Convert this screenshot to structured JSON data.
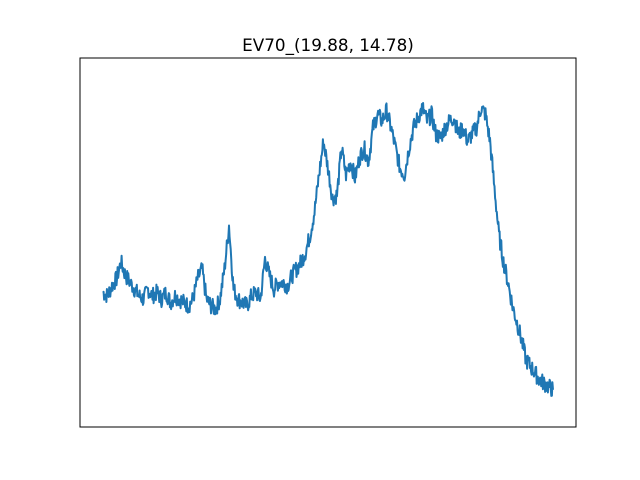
{
  "chart_data": {
    "type": "line",
    "title": "EV70_(19.88, 14.78)",
    "xlabel": "",
    "ylabel": "",
    "ticks_shown": false,
    "grid": false,
    "legend": "none",
    "xlim": [
      0,
      100
    ],
    "ylim": [
      0,
      100
    ],
    "series": [
      {
        "color": "#1f77b4",
        "x": [
          0,
          1,
          2,
          3,
          4,
          5,
          6,
          7,
          8,
          9,
          10,
          11,
          12,
          13,
          14,
          15,
          16,
          17,
          18,
          19,
          20,
          21,
          22,
          23,
          24,
          25,
          26,
          27,
          28,
          29,
          30,
          31,
          32,
          33,
          34,
          35,
          36,
          37,
          38,
          39,
          40,
          41,
          42,
          43,
          44,
          45,
          46,
          47,
          48,
          49,
          50,
          51,
          52,
          53,
          54,
          55,
          56,
          57,
          58,
          59,
          60,
          61,
          62,
          63,
          64,
          65,
          66,
          67,
          68,
          69,
          70,
          71,
          72,
          73,
          74,
          75,
          76,
          77,
          78,
          79,
          80,
          81,
          82,
          83,
          84,
          85,
          86,
          87,
          88,
          89,
          90,
          91,
          92,
          93,
          94,
          95,
          96,
          97,
          98,
          99,
          100
        ],
        "y": [
          35,
          34,
          37,
          39,
          44,
          40,
          38,
          36,
          34,
          33,
          36,
          34,
          35,
          33,
          35,
          32,
          34,
          33,
          32,
          31,
          33,
          39,
          42,
          33,
          31,
          30,
          33,
          42,
          55,
          36,
          33,
          32,
          31,
          34,
          35,
          33,
          45,
          40,
          36,
          38,
          38,
          37,
          40,
          42,
          44,
          47,
          52,
          59,
          70,
          80,
          72,
          63,
          64,
          78,
          70,
          74,
          69,
          75,
          78,
          74,
          84,
          88,
          86,
          89,
          84,
          78,
          72,
          70,
          78,
          84,
          87,
          90,
          86,
          88,
          82,
          81,
          84,
          86,
          87,
          82,
          84,
          80,
          82,
          84,
          90,
          88,
          80,
          66,
          52,
          44,
          38,
          31,
          26,
          21,
          15,
          13,
          11,
          9,
          8,
          7,
          6
        ]
      }
    ]
  }
}
